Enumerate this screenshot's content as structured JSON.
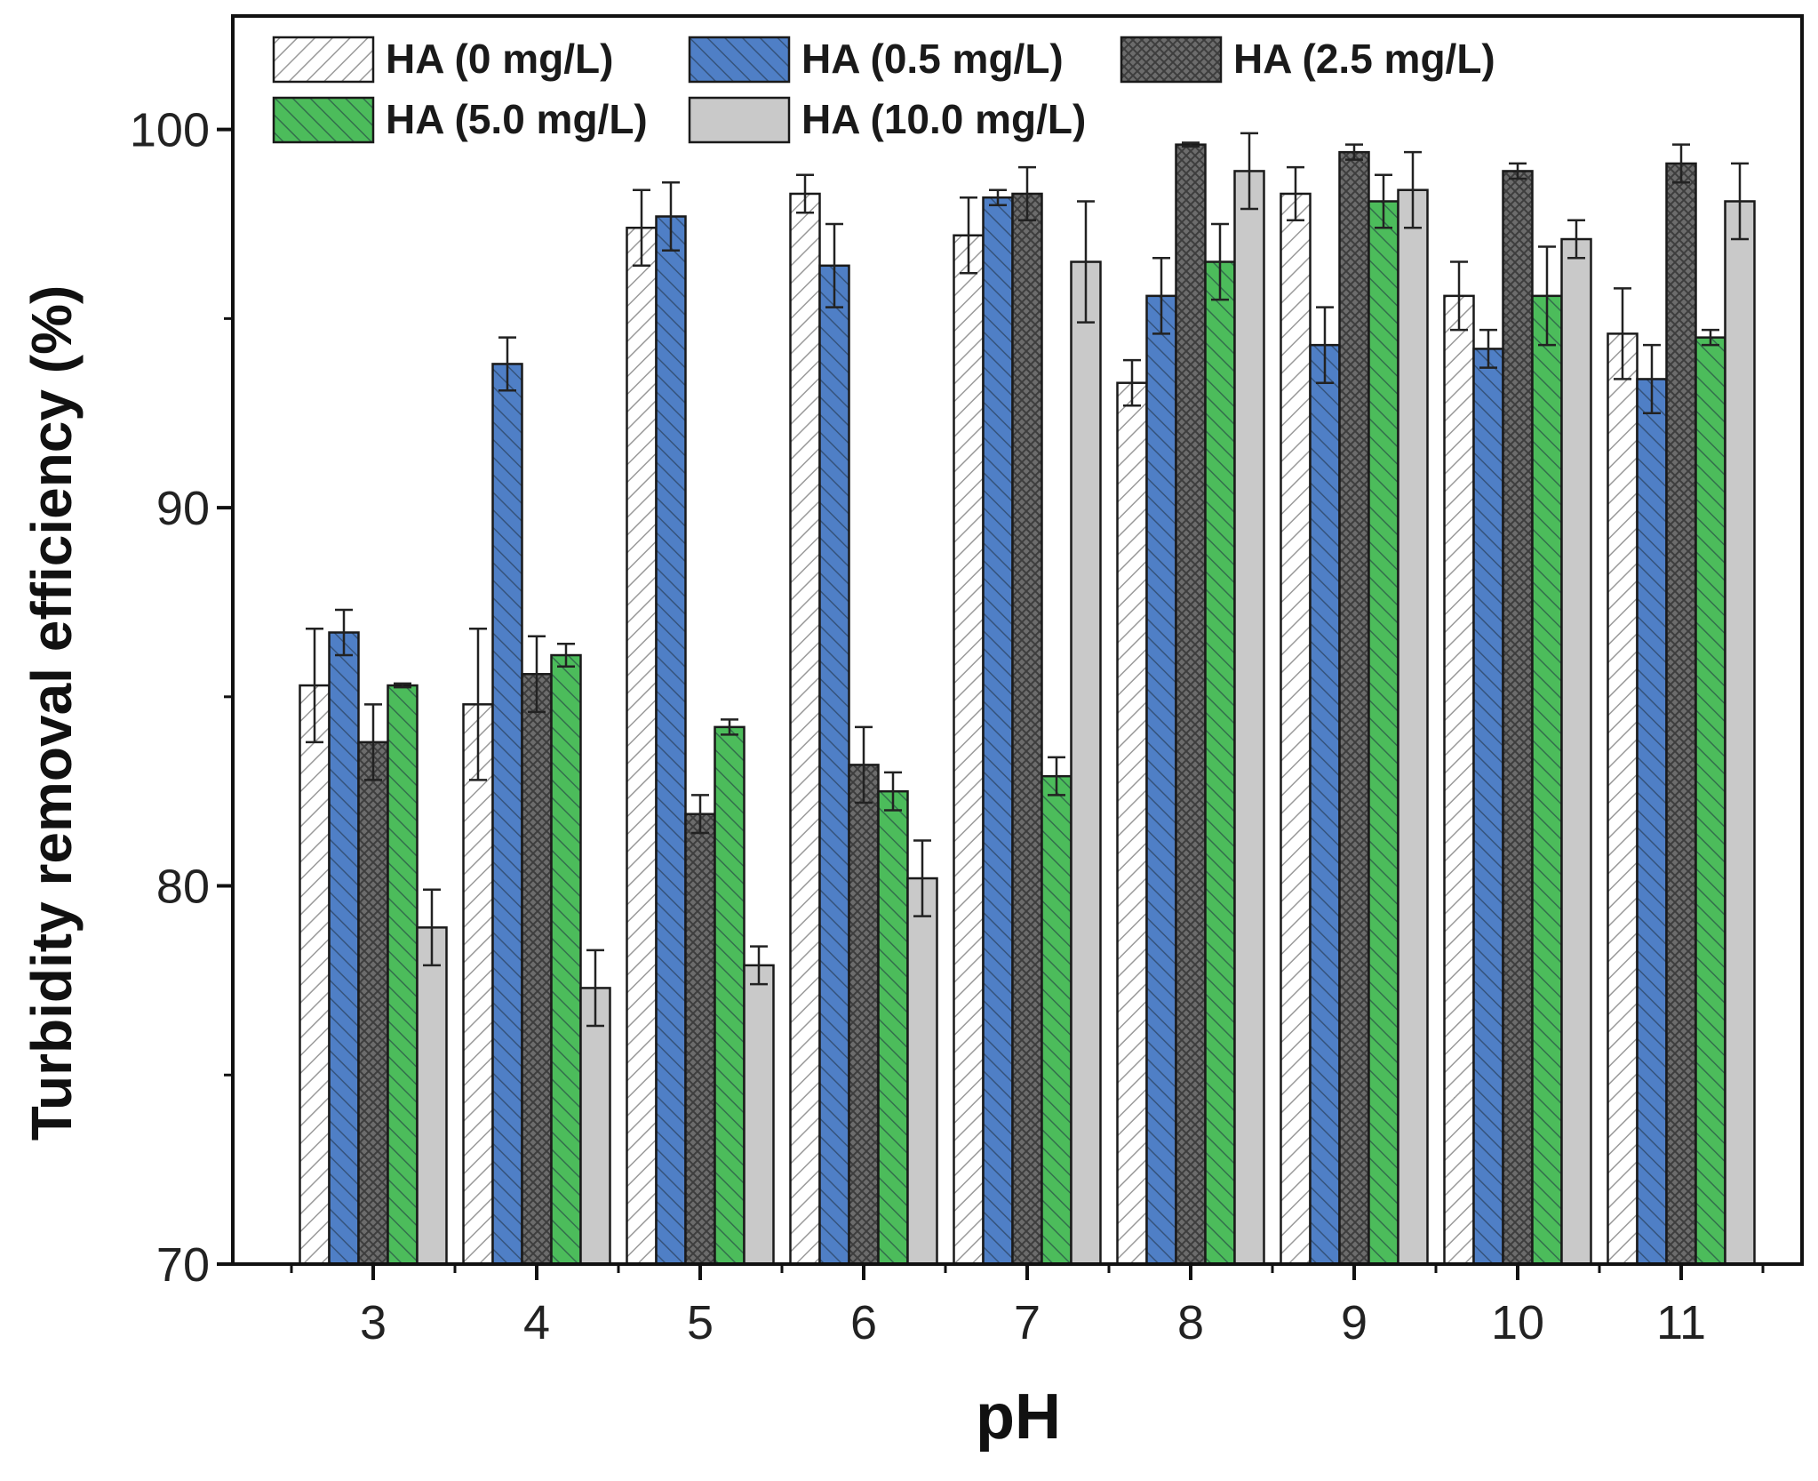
{
  "chart_data": {
    "type": "bar",
    "title": "",
    "xlabel": "pH",
    "ylabel": "Turbidity removal efficiency (%)",
    "ylim": [
      70,
      103
    ],
    "yticks": [
      70,
      80,
      90,
      100
    ],
    "categories": [
      "3",
      "4",
      "5",
      "6",
      "7",
      "8",
      "9",
      "10",
      "11"
    ],
    "legend_position": "top-left",
    "series": [
      {
        "name": "HA (0 mg/L)",
        "color": "#ffffff",
        "pattern": "diag-light",
        "values": [
          85.3,
          84.8,
          97.4,
          98.3,
          97.2,
          93.3,
          98.3,
          95.6,
          94.6
        ],
        "errors": [
          1.5,
          2.0,
          1.0,
          0.5,
          1.0,
          0.6,
          0.7,
          0.9,
          1.2
        ]
      },
      {
        "name": "HA (0.5 mg/L)",
        "color": "#4f7fc6",
        "pattern": "diag-dark",
        "values": [
          86.7,
          93.8,
          97.7,
          96.4,
          98.2,
          95.6,
          94.3,
          94.2,
          93.4
        ],
        "errors": [
          0.6,
          0.7,
          0.9,
          1.1,
          0.2,
          1.0,
          1.0,
          0.5,
          0.9
        ]
      },
      {
        "name": "HA (2.5 mg/L)",
        "color": "#6c6c6c",
        "pattern": "cross",
        "values": [
          83.8,
          85.6,
          81.9,
          83.2,
          98.3,
          99.6,
          99.4,
          98.9,
          99.1
        ],
        "errors": [
          1.0,
          1.0,
          0.5,
          1.0,
          0.7,
          0.05,
          0.2,
          0.2,
          0.5
        ]
      },
      {
        "name": "HA (5.0 mg/L)",
        "color": "#4cbc5b",
        "pattern": "diag-dark",
        "values": [
          85.3,
          86.1,
          84.2,
          82.5,
          82.9,
          96.5,
          98.1,
          95.6,
          94.5
        ],
        "errors": [
          0.05,
          0.3,
          0.2,
          0.5,
          0.5,
          1.0,
          0.7,
          1.3,
          0.2
        ]
      },
      {
        "name": "HA (10.0 mg/L)",
        "color": "#c9c9c9",
        "pattern": "none",
        "values": [
          78.9,
          77.3,
          77.9,
          80.2,
          96.5,
          98.9,
          98.4,
          97.1,
          98.1
        ],
        "errors": [
          1.0,
          1.0,
          0.5,
          1.0,
          1.6,
          1.0,
          1.0,
          0.5,
          1.0
        ]
      }
    ]
  }
}
